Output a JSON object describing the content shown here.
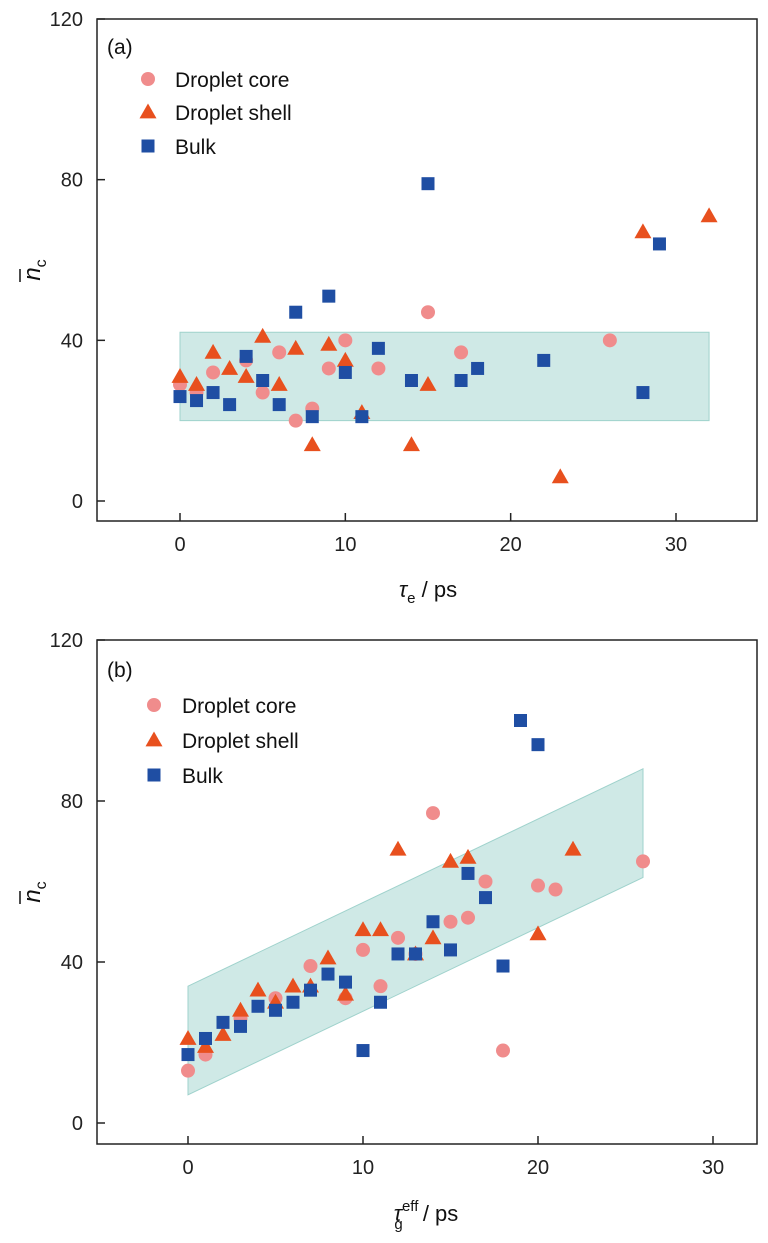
{
  "colors": {
    "core": "#f08c8c",
    "shell": "#e8501e",
    "bulk": "#1f4ea3",
    "band": "#cfe9e6",
    "band_edge": "#9fd2cc"
  },
  "chart_data": [
    {
      "type": "scatter",
      "panel_label": "(a)",
      "xlabel_symbol": "τ",
      "xlabel_sub": "e",
      "xlabel_sup": "",
      "xlabel_unit": " / ps",
      "ylabel_main": "n",
      "ylabel_sub": "c",
      "xlim": [
        -5,
        35
      ],
      "ylim": [
        -5,
        120
      ],
      "xticks": [
        0,
        10,
        20,
        30
      ],
      "yticks": [
        0,
        40,
        80,
        120
      ],
      "legend_position": "top-left",
      "band": {
        "polygon": [
          [
            0,
            42
          ],
          [
            32,
            42
          ],
          [
            32,
            20
          ],
          [
            0,
            20
          ]
        ]
      },
      "series": [
        {
          "name": "Droplet core",
          "marker": "circle",
          "color_key": "core",
          "points": [
            [
              0,
              29
            ],
            [
              1,
              27
            ],
            [
              2,
              32
            ],
            [
              4,
              35
            ],
            [
              5,
              27
            ],
            [
              6,
              37
            ],
            [
              7,
              20
            ],
            [
              8,
              23
            ],
            [
              9,
              33
            ],
            [
              10,
              40
            ],
            [
              12,
              33
            ],
            [
              15,
              47
            ],
            [
              17,
              37
            ],
            [
              26,
              40
            ]
          ]
        },
        {
          "name": "Droplet shell",
          "marker": "triangle",
          "color_key": "shell",
          "points": [
            [
              0,
              31
            ],
            [
              1,
              29
            ],
            [
              2,
              37
            ],
            [
              3,
              33
            ],
            [
              4,
              31
            ],
            [
              5,
              41
            ],
            [
              6,
              29
            ],
            [
              7,
              38
            ],
            [
              8,
              14
            ],
            [
              9,
              39
            ],
            [
              10,
              35
            ],
            [
              11,
              22
            ],
            [
              14,
              14
            ],
            [
              15,
              29
            ],
            [
              23,
              6
            ],
            [
              28,
              67
            ],
            [
              32,
              71
            ]
          ]
        },
        {
          "name": "Bulk",
          "marker": "square",
          "color_key": "bulk",
          "points": [
            [
              0,
              26
            ],
            [
              1,
              25
            ],
            [
              2,
              27
            ],
            [
              3,
              24
            ],
            [
              4,
              36
            ],
            [
              5,
              30
            ],
            [
              6,
              24
            ],
            [
              7,
              47
            ],
            [
              8,
              21
            ],
            [
              9,
              51
            ],
            [
              10,
              32
            ],
            [
              11,
              21
            ],
            [
              12,
              38
            ],
            [
              14,
              30
            ],
            [
              15,
              79
            ],
            [
              17,
              30
            ],
            [
              18,
              33
            ],
            [
              22,
              35
            ],
            [
              28,
              27
            ],
            [
              29,
              64
            ]
          ]
        }
      ]
    },
    {
      "type": "scatter",
      "panel_label": "(b)",
      "xlabel_symbol": "τ",
      "xlabel_sub": "g",
      "xlabel_sup": "eff",
      "xlabel_unit": " / ps",
      "ylabel_main": "n",
      "ylabel_sub": "c",
      "xlim": [
        -5,
        32
      ],
      "ylim": [
        -5,
        120
      ],
      "xticks": [
        0,
        10,
        20,
        30
      ],
      "yticks": [
        0,
        40,
        80,
        120
      ],
      "legend_position": "top-left",
      "band": {
        "polygon": [
          [
            0,
            34
          ],
          [
            26,
            88
          ],
          [
            26,
            61
          ],
          [
            0,
            7
          ]
        ]
      },
      "series": [
        {
          "name": "Droplet core",
          "marker": "circle",
          "color_key": "core",
          "points": [
            [
              0,
              13
            ],
            [
              1,
              17
            ],
            [
              3,
              26
            ],
            [
              5,
              31
            ],
            [
              7,
              39
            ],
            [
              9,
              31
            ],
            [
              10,
              43
            ],
            [
              11,
              34
            ],
            [
              12,
              46
            ],
            [
              13,
              42
            ],
            [
              14,
              77
            ],
            [
              15,
              50
            ],
            [
              16,
              51
            ],
            [
              17,
              60
            ],
            [
              18,
              18
            ],
            [
              20,
              59
            ],
            [
              21,
              58
            ],
            [
              26,
              65
            ]
          ]
        },
        {
          "name": "Droplet shell",
          "marker": "triangle",
          "color_key": "shell",
          "points": [
            [
              0,
              21
            ],
            [
              1,
              19
            ],
            [
              2,
              22
            ],
            [
              3,
              28
            ],
            [
              4,
              33
            ],
            [
              5,
              30
            ],
            [
              6,
              34
            ],
            [
              7,
              34
            ],
            [
              8,
              41
            ],
            [
              9,
              32
            ],
            [
              10,
              48
            ],
            [
              11,
              48
            ],
            [
              12,
              68
            ],
            [
              13,
              42
            ],
            [
              14,
              46
            ],
            [
              15,
              65
            ],
            [
              16,
              66
            ],
            [
              20,
              47
            ],
            [
              22,
              68
            ]
          ]
        },
        {
          "name": "Bulk",
          "marker": "square",
          "color_key": "bulk",
          "points": [
            [
              0,
              17
            ],
            [
              1,
              21
            ],
            [
              2,
              25
            ],
            [
              3,
              24
            ],
            [
              4,
              29
            ],
            [
              5,
              28
            ],
            [
              6,
              30
            ],
            [
              7,
              33
            ],
            [
              8,
              37
            ],
            [
              9,
              35
            ],
            [
              10,
              18
            ],
            [
              11,
              30
            ],
            [
              12,
              42
            ],
            [
              13,
              42
            ],
            [
              14,
              50
            ],
            [
              15,
              43
            ],
            [
              16,
              62
            ],
            [
              17,
              56
            ],
            [
              18,
              39
            ],
            [
              19,
              100
            ],
            [
              20,
              94
            ]
          ]
        }
      ]
    }
  ]
}
